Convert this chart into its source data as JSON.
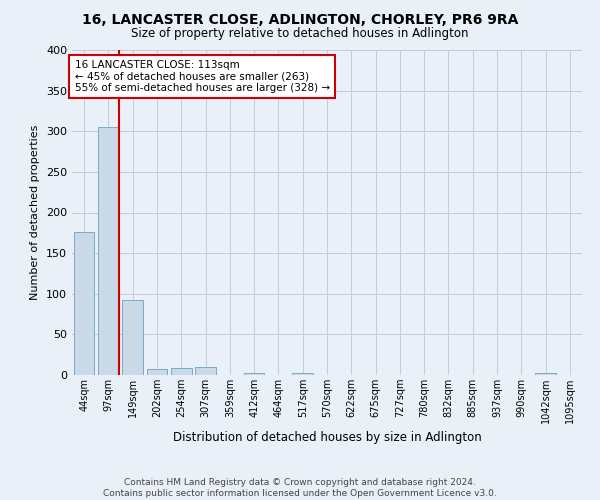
{
  "title": "16, LANCASTER CLOSE, ADLINGTON, CHORLEY, PR6 9RA",
  "subtitle": "Size of property relative to detached houses in Adlington",
  "xlabel": "Distribution of detached houses by size in Adlington",
  "ylabel": "Number of detached properties",
  "footer_line1": "Contains HM Land Registry data © Crown copyright and database right 2024.",
  "footer_line2": "Contains public sector information licensed under the Open Government Licence v3.0.",
  "bar_labels": [
    "44sqm",
    "97sqm",
    "149sqm",
    "202sqm",
    "254sqm",
    "307sqm",
    "359sqm",
    "412sqm",
    "464sqm",
    "517sqm",
    "570sqm",
    "622sqm",
    "675sqm",
    "727sqm",
    "780sqm",
    "832sqm",
    "885sqm",
    "937sqm",
    "990sqm",
    "1042sqm",
    "1095sqm"
  ],
  "bar_values": [
    176,
    305,
    92,
    8,
    9,
    10,
    0,
    3,
    0,
    3,
    0,
    0,
    0,
    0,
    0,
    0,
    0,
    0,
    0,
    3,
    0
  ],
  "bar_color": "#c9d9e8",
  "bar_edge_color": "#7aaac8",
  "property_line_label": "16 LANCASTER CLOSE: 113sqm",
  "annotation_line1": "← 45% of detached houses are smaller (263)",
  "annotation_line2": "55% of semi-detached houses are larger (328) →",
  "red_line_color": "#cc0000",
  "annotation_box_color": "#ffffff",
  "annotation_box_edge": "#cc0000",
  "grid_color": "#c0ccdd",
  "background_color": "#eaf0f8",
  "ylim": [
    0,
    400
  ],
  "yticks": [
    0,
    50,
    100,
    150,
    200,
    250,
    300,
    350,
    400
  ]
}
